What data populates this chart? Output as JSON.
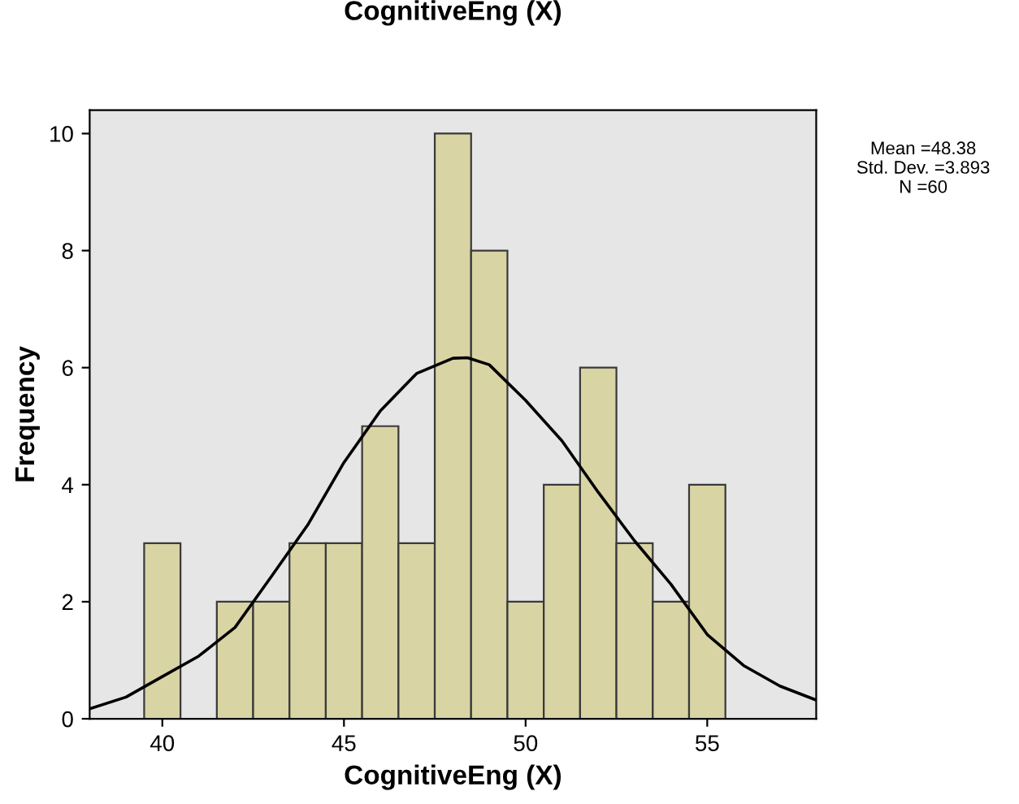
{
  "chart_data": {
    "type": "histogram",
    "title": "CognitiveEng (X)",
    "xlabel": "CognitiveEng (X)",
    "ylabel": "Frequency",
    "bins": [
      39.5,
      40.5,
      41.5,
      42.5,
      43.5,
      44.5,
      45.5,
      46.5,
      47.5,
      48.5,
      49.5,
      50.5,
      51.5,
      52.5,
      53.5,
      54.5,
      55.5
    ],
    "values": [
      3,
      0,
      2,
      2,
      3,
      3,
      5,
      3,
      10,
      8,
      2,
      4,
      6,
      3,
      2,
      4
    ],
    "color": "#d8d4a4",
    "series": [
      {
        "type": "line",
        "color": "#000000",
        "marker": "none",
        "line_style": "solid",
        "x": [
          38,
          39,
          40,
          41,
          42,
          43,
          44,
          45,
          46,
          47,
          48,
          48.4,
          49,
          50,
          51,
          52,
          53,
          54,
          55,
          56,
          57,
          58
        ],
        "values": [
          0.17,
          0.37,
          0.72,
          1.07,
          1.56,
          2.43,
          3.31,
          4.38,
          5.26,
          5.9,
          6.16,
          6.17,
          6.05,
          5.44,
          4.75,
          3.87,
          3.04,
          2.3,
          1.44,
          0.91,
          0.56,
          0.32
        ]
      }
    ],
    "xlim": [
      38,
      58
    ],
    "ylim": [
      0,
      10.4
    ],
    "xticks": [
      40,
      45,
      50,
      55
    ],
    "yticks": [
      0,
      2,
      4,
      6,
      8,
      10
    ],
    "grid": false,
    "legend": false,
    "annotations": [
      "Mean =48.38",
      "Std. Dev. =3.893",
      "N =60"
    ]
  }
}
